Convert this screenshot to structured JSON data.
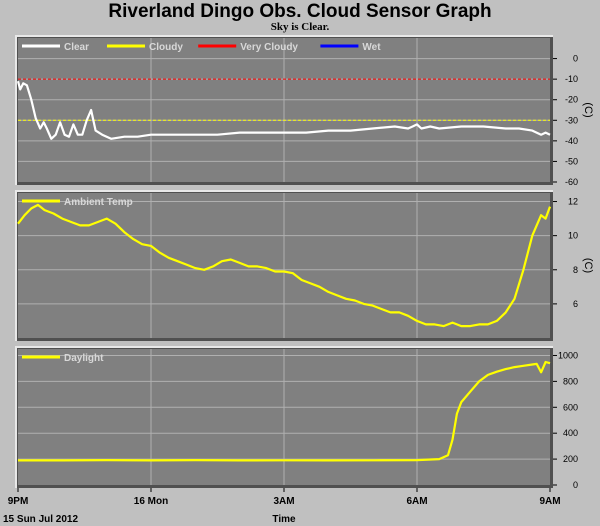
{
  "title": "Riverland Dingo Obs. Cloud Sensor Graph",
  "subtitle": "Sky is Clear.",
  "x_axis": {
    "label": "Time",
    "ticks": [
      {
        "h": 0,
        "label": "9PM"
      },
      {
        "h": 3,
        "label": "16 Mon"
      },
      {
        "h": 6,
        "label": "3AM"
      },
      {
        "h": 9,
        "label": "6AM"
      },
      {
        "h": 12,
        "label": "9AM"
      }
    ],
    "date_label": "15 Sun Jul 2012"
  },
  "chart_data": [
    {
      "type": "line",
      "title": "",
      "unit": "(C)",
      "ylim": [
        -60,
        10
      ],
      "yticks": [
        0,
        -10,
        -20,
        -30,
        -40,
        -50,
        -60
      ],
      "legend": [
        {
          "name": "Clear",
          "color": "#ffffff"
        },
        {
          "name": "Cloudy",
          "color": "#ffff00"
        },
        {
          "name": "Very Cloudy",
          "color": "#ff0000"
        },
        {
          "name": "Wet",
          "color": "#0000ff"
        }
      ],
      "thresholds": [
        {
          "value": -10,
          "color": "#ff0000"
        },
        {
          "value": -30,
          "color": "#ffff00"
        }
      ],
      "series": [
        {
          "name": "Clear",
          "color": "#ffffff",
          "x": [
            0,
            0.05,
            0.12,
            0.2,
            0.3,
            0.4,
            0.5,
            0.58,
            0.65,
            0.75,
            0.85,
            0.95,
            1.05,
            1.15,
            1.25,
            1.35,
            1.45,
            1.55,
            1.65,
            1.75,
            1.9,
            2.1,
            2.4,
            2.7,
            3.0,
            3.5,
            4.0,
            4.5,
            5.0,
            5.5,
            6.0,
            6.5,
            7.0,
            7.5,
            8.0,
            8.5,
            8.8,
            8.9,
            9.0,
            9.1,
            9.3,
            9.5,
            10.0,
            10.5,
            11.0,
            11.3,
            11.6,
            11.8,
            11.9,
            12.0
          ],
          "y": [
            -11,
            -15,
            -12,
            -13,
            -20,
            -29,
            -34,
            -31,
            -34,
            -39,
            -37,
            -31,
            -37,
            -38,
            -32,
            -37,
            -37,
            -30,
            -25,
            -35,
            -37,
            -39,
            -38,
            -38,
            -37,
            -37,
            -37,
            -37,
            -36,
            -36,
            -36,
            -36,
            -35,
            -35,
            -34,
            -33,
            -34,
            -33,
            -32,
            -34,
            -33,
            -34,
            -33,
            -33,
            -34,
            -34,
            -35,
            -37,
            -36,
            -37
          ]
        }
      ]
    },
    {
      "type": "line",
      "title": "",
      "unit": "(C)",
      "ylim": [
        4,
        12.5
      ],
      "yticks": [
        12,
        10,
        8,
        6
      ],
      "legend": [
        {
          "name": "Ambient Temp",
          "color": "#ffff00"
        }
      ],
      "series": [
        {
          "name": "Ambient Temp",
          "color": "#ffff00",
          "x": [
            0,
            0.15,
            0.3,
            0.45,
            0.6,
            0.8,
            1.0,
            1.2,
            1.4,
            1.6,
            1.8,
            2.0,
            2.2,
            2.4,
            2.6,
            2.8,
            3.0,
            3.2,
            3.4,
            3.6,
            3.8,
            4.0,
            4.2,
            4.4,
            4.6,
            4.8,
            5.0,
            5.2,
            5.4,
            5.6,
            5.8,
            6.0,
            6.2,
            6.4,
            6.6,
            6.8,
            7.0,
            7.2,
            7.4,
            7.6,
            7.8,
            8.0,
            8.2,
            8.4,
            8.6,
            8.8,
            9.0,
            9.2,
            9.4,
            9.6,
            9.8,
            10.0,
            10.2,
            10.4,
            10.6,
            10.8,
            11.0,
            11.2,
            11.4,
            11.6,
            11.8,
            11.9,
            12.0
          ],
          "y": [
            10.7,
            11.2,
            11.6,
            11.8,
            11.5,
            11.3,
            11.0,
            10.8,
            10.6,
            10.6,
            10.8,
            11.0,
            10.7,
            10.2,
            9.8,
            9.5,
            9.4,
            9.0,
            8.7,
            8.5,
            8.3,
            8.1,
            8.0,
            8.2,
            8.5,
            8.6,
            8.4,
            8.2,
            8.2,
            8.1,
            7.9,
            7.9,
            7.8,
            7.4,
            7.2,
            7.0,
            6.7,
            6.5,
            6.3,
            6.2,
            6.0,
            5.9,
            5.7,
            5.5,
            5.5,
            5.3,
            5.0,
            4.8,
            4.8,
            4.7,
            4.9,
            4.7,
            4.7,
            4.8,
            4.8,
            5.0,
            5.5,
            6.3,
            8.0,
            10.0,
            11.2,
            11.0,
            11.7
          ]
        }
      ]
    },
    {
      "type": "line",
      "title": "",
      "unit": "",
      "ylim": [
        0,
        1050
      ],
      "yticks": [
        1000,
        800,
        600,
        400,
        200,
        0
      ],
      "legend": [
        {
          "name": "Daylight",
          "color": "#ffff00"
        }
      ],
      "series": [
        {
          "name": "Daylight",
          "color": "#ffff00",
          "x": [
            0,
            1,
            2,
            3,
            4,
            5,
            6,
            7,
            8,
            9,
            9.5,
            9.7,
            9.8,
            9.9,
            10.0,
            10.2,
            10.4,
            10.6,
            10.8,
            11.0,
            11.2,
            11.4,
            11.6,
            11.7,
            11.8,
            11.9,
            12.0
          ],
          "y": [
            190,
            190,
            192,
            190,
            192,
            190,
            191,
            190,
            191,
            192,
            200,
            230,
            350,
            550,
            640,
            720,
            800,
            850,
            875,
            895,
            910,
            920,
            930,
            935,
            870,
            950,
            940
          ]
        }
      ]
    }
  ]
}
